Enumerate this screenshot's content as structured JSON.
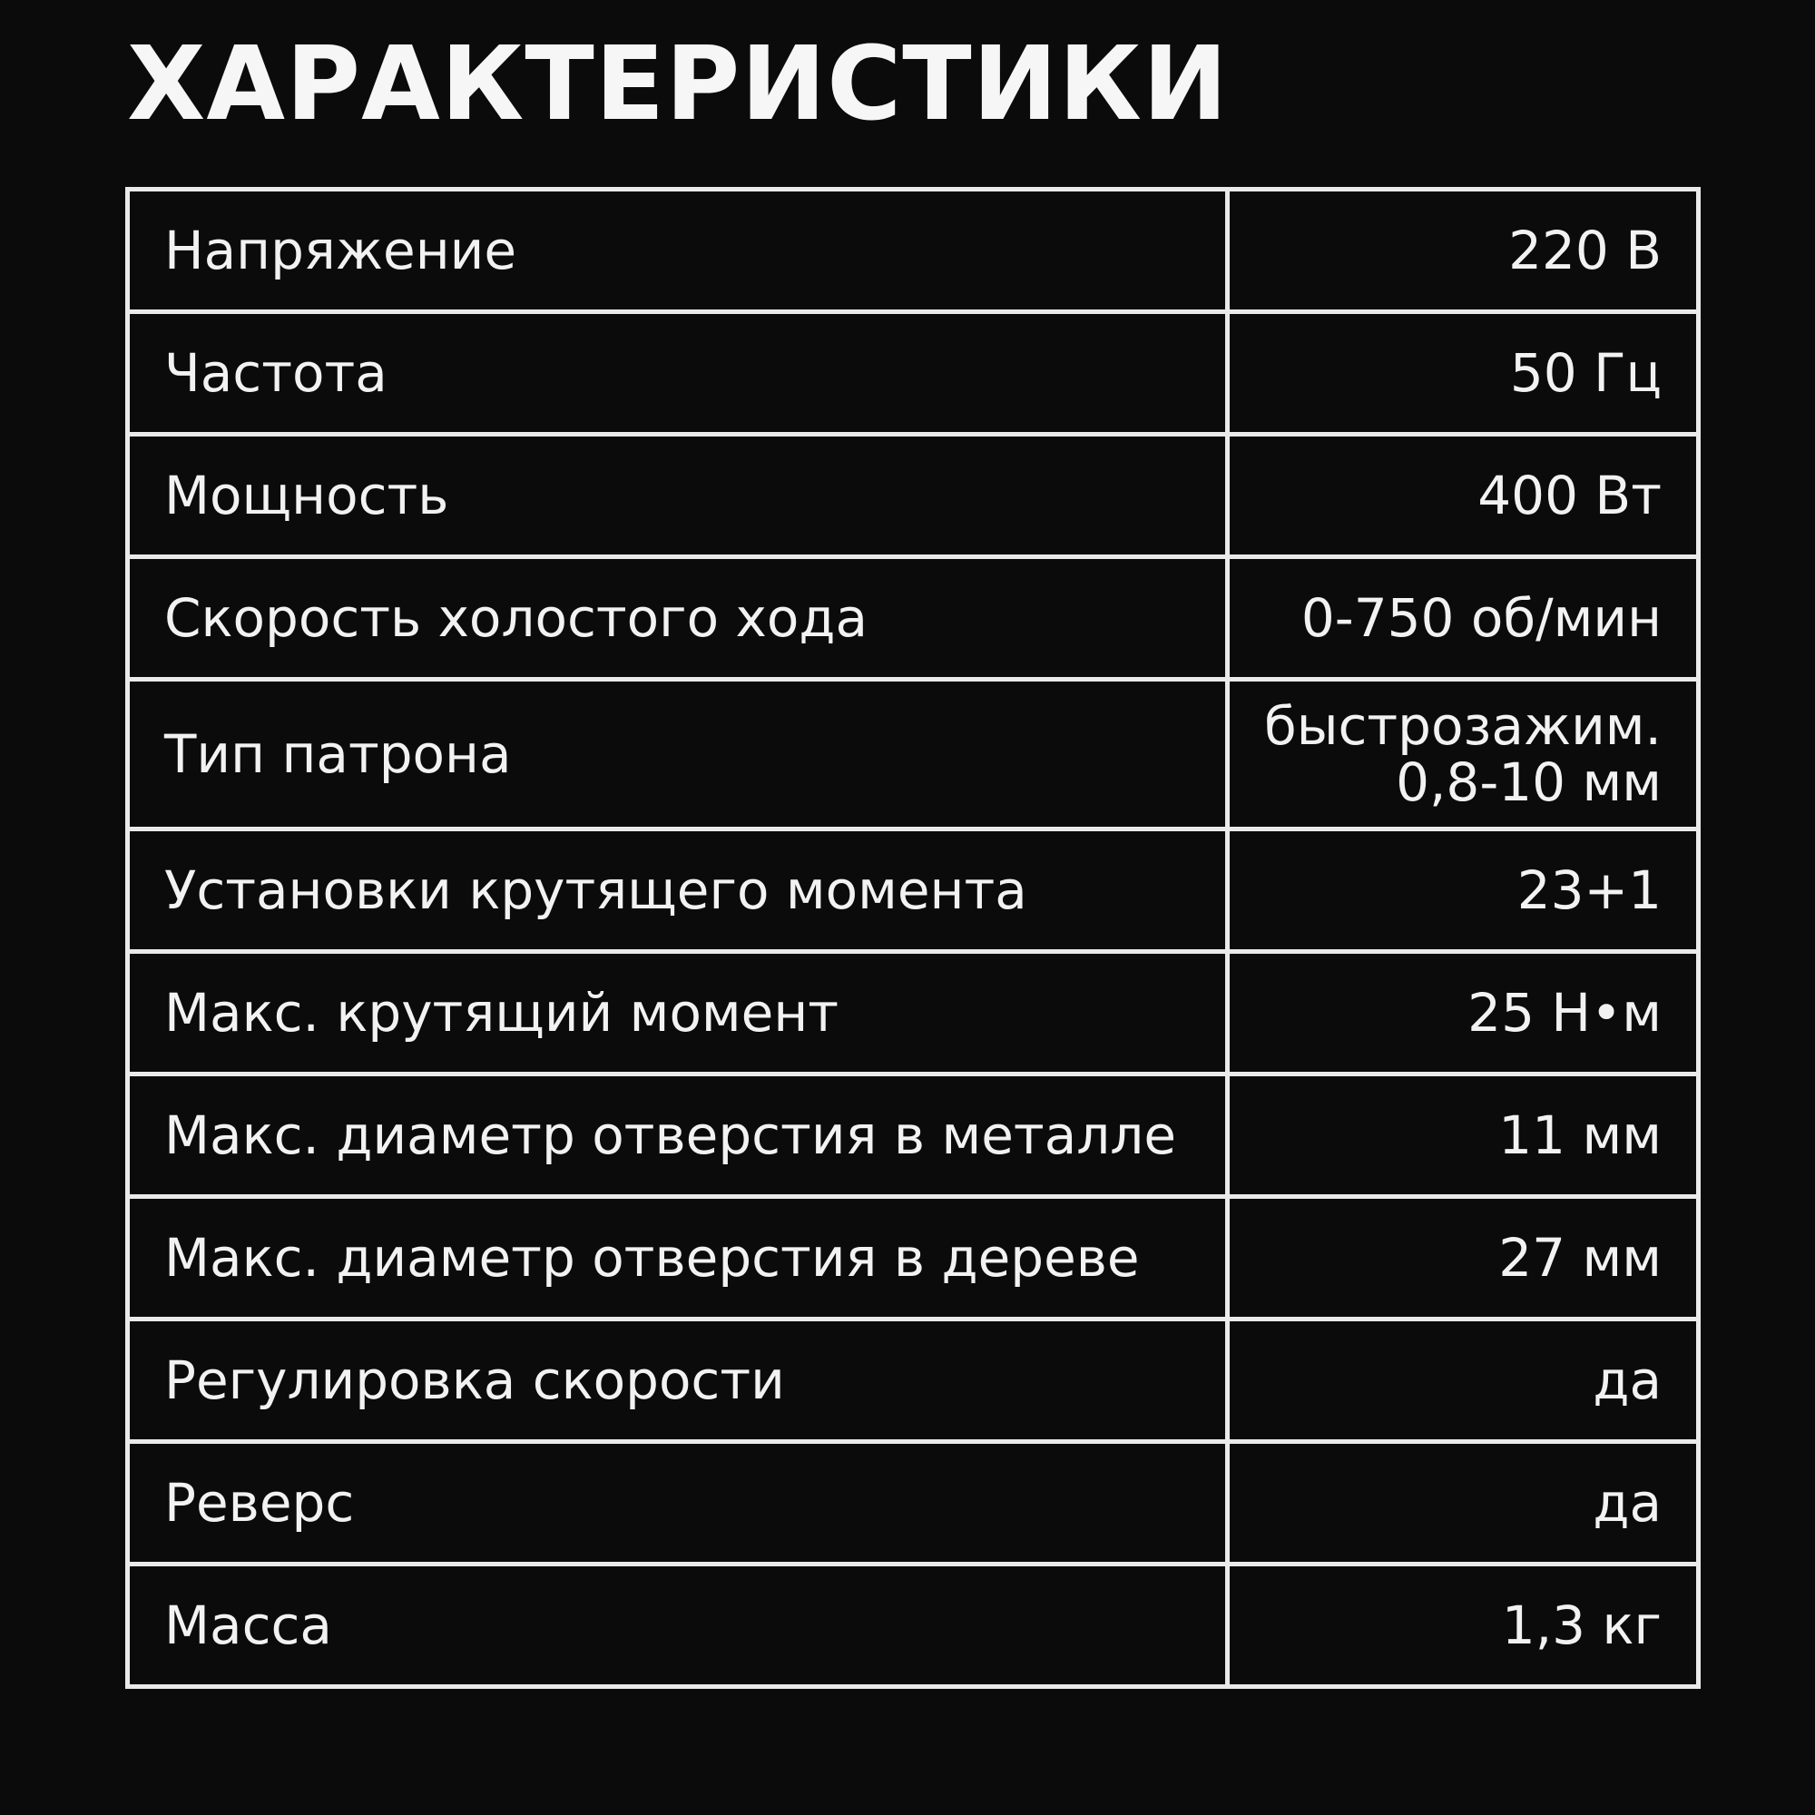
{
  "title": "ХАРАКТЕРИСТИКИ",
  "specs": [
    {
      "label": "Напряжение",
      "value": "220 В"
    },
    {
      "label": "Частота",
      "value": "50 Гц"
    },
    {
      "label": "Мощность",
      "value": "400 Вт"
    },
    {
      "label": "Скорость холостого хода",
      "value": "0-750 об/мин"
    },
    {
      "label": "Тип патрона",
      "value": "быстрозажим.",
      "value2": "0,8-10 мм"
    },
    {
      "label": "Установки крутящего момента",
      "value": "23+1"
    },
    {
      "label": "Макс. крутящий момент",
      "value": "25 Н•м"
    },
    {
      "label": "Макс. диаметр отверстия в металле",
      "value": "11 мм"
    },
    {
      "label": "Макс. диаметр отверстия в дереве",
      "value": "27 мм"
    },
    {
      "label": "Регулировка скорости",
      "value": "да"
    },
    {
      "label": "Реверс",
      "value": "да"
    },
    {
      "label": "Масса",
      "value": "1,3 кг"
    }
  ]
}
